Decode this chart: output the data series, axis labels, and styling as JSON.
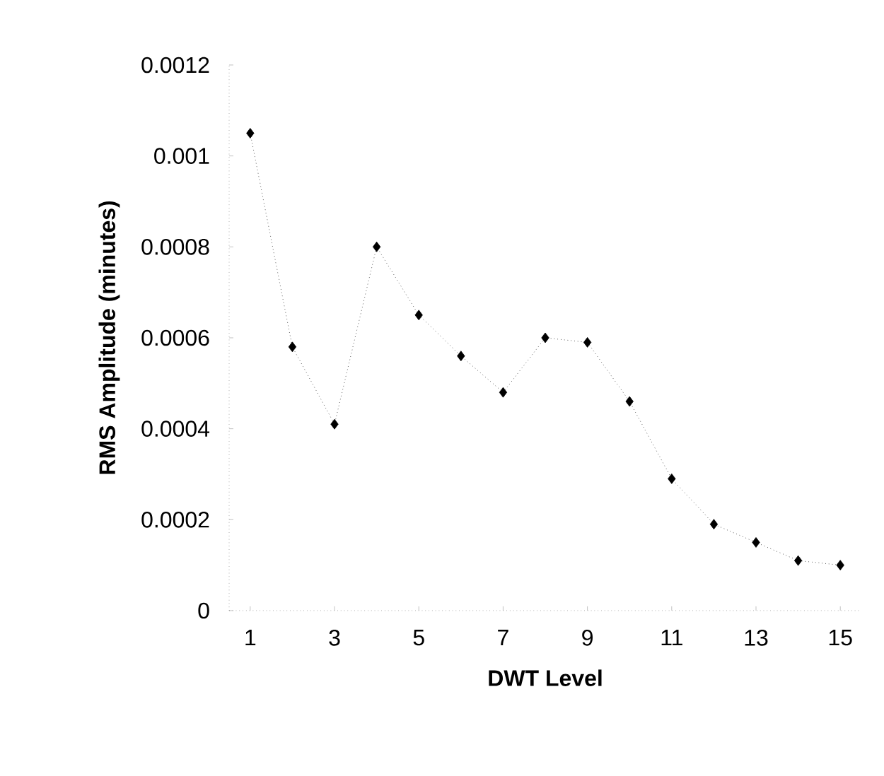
{
  "chart_data": {
    "type": "line",
    "xlabel": "DWT Level",
    "ylabel": "RMS Amplitude (minutes)",
    "x": [
      1,
      2,
      3,
      4,
      5,
      6,
      7,
      8,
      9,
      10,
      11,
      12,
      13,
      14,
      15
    ],
    "series": [
      {
        "color": "#000000",
        "values": [
          0.00105,
          0.00058,
          0.00041,
          0.0008,
          0.00065,
          0.00056,
          0.00048,
          0.0006,
          0.00059,
          0.00046,
          0.00029,
          0.00019,
          0.00015,
          0.00011,
          0.0001
        ]
      }
    ],
    "xlim": [
      0.5,
      15.5
    ],
    "xticks": [
      1,
      3,
      5,
      7,
      9,
      11,
      13,
      15
    ],
    "ylim": [
      0,
      0.0012
    ],
    "yticks": [
      0,
      0.0002,
      0.0004,
      0.0006,
      0.0008,
      0.001,
      0.0012
    ],
    "marker": "diamond",
    "line_style": "dotted"
  }
}
